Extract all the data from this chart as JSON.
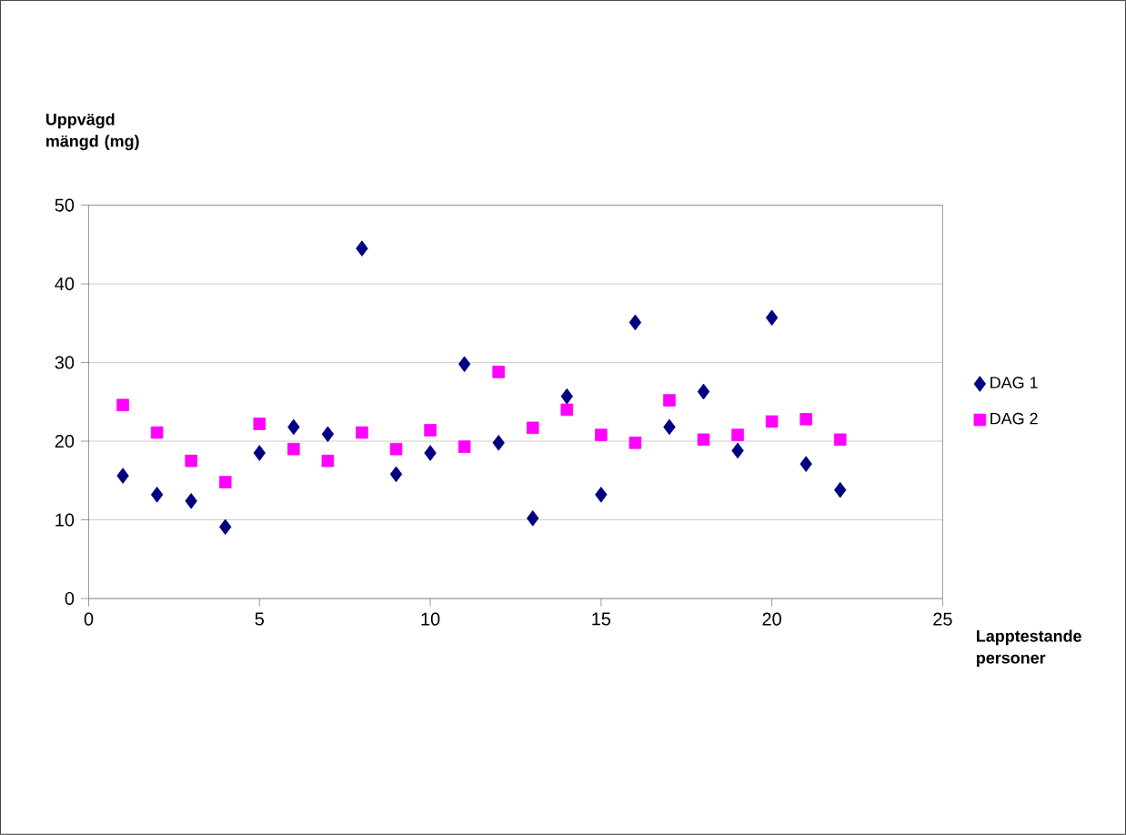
{
  "chart_data": {
    "type": "scatter",
    "xlabel": "Lapptestande personer",
    "ylabel": "Uppvägd mängd (mg)",
    "xlim": [
      0,
      25
    ],
    "xticks": [
      0,
      5,
      10,
      15,
      20,
      25
    ],
    "ylim": [
      0,
      50
    ],
    "yticks": [
      0,
      10,
      20,
      30,
      40,
      50
    ],
    "grid": "y",
    "legend": "right",
    "x": [
      1,
      2,
      3,
      4,
      5,
      6,
      7,
      8,
      9,
      10,
      11,
      12,
      13,
      14,
      15,
      16,
      17,
      18,
      19,
      20,
      21,
      22
    ],
    "series": [
      {
        "name": "DAG 1",
        "color": "#000080",
        "marker": "diamond",
        "values": [
          15.6,
          13.2,
          12.4,
          9.1,
          18.5,
          21.8,
          20.9,
          44.5,
          15.8,
          18.5,
          29.8,
          19.8,
          10.2,
          25.7,
          13.2,
          35.1,
          21.8,
          26.3,
          18.8,
          35.7,
          17.1,
          13.8
        ]
      },
      {
        "name": "DAG 2",
        "color": "#ff00ff",
        "marker": "square",
        "values": [
          24.6,
          21.1,
          17.5,
          14.8,
          22.2,
          19.0,
          17.5,
          21.1,
          19.0,
          21.4,
          19.3,
          28.8,
          21.7,
          24.0,
          20.8,
          19.8,
          25.2,
          20.2,
          20.8,
          22.5,
          22.8,
          20.2
        ]
      }
    ]
  }
}
